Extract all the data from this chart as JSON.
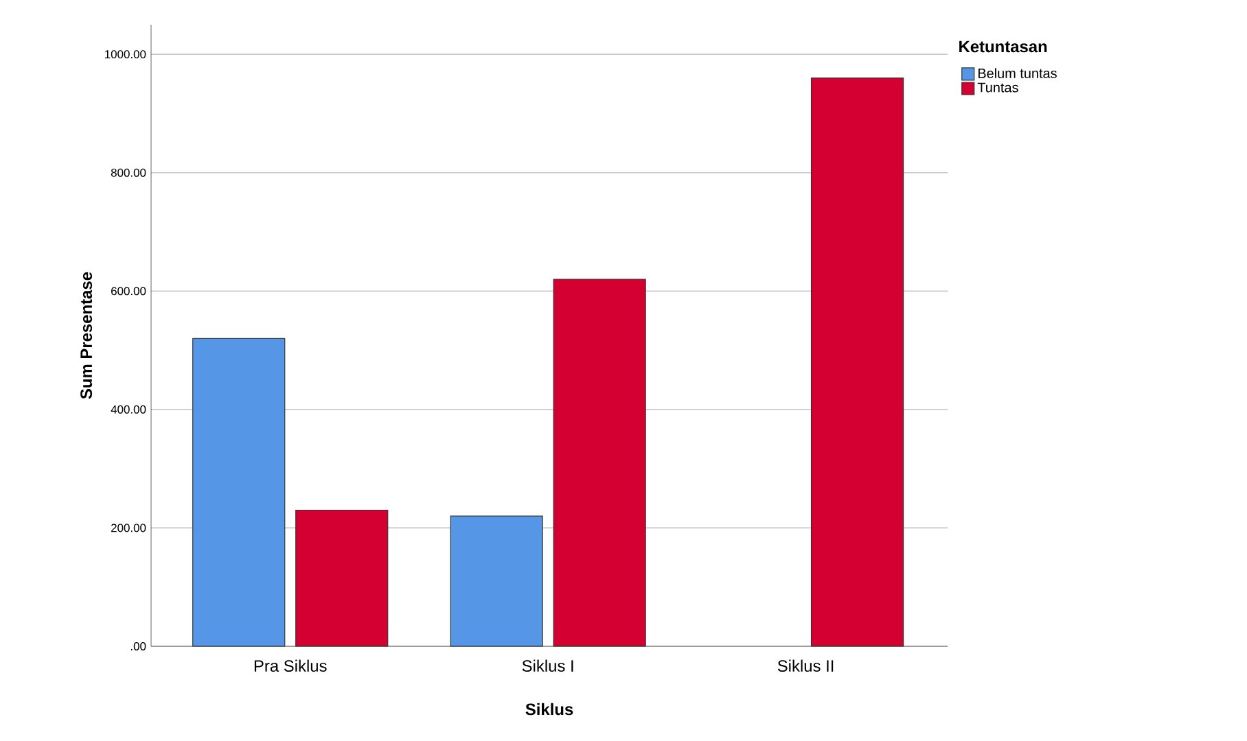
{
  "chart_data": {
    "type": "bar",
    "xlabel": "Siklus",
    "ylabel": "Sum Presentase",
    "legend_title": "Ketuntasan",
    "categories": [
      "Pra Siklus",
      "Siklus I",
      "Siklus II"
    ],
    "series": [
      {
        "name": "Belum tuntas",
        "color": "#5596e6",
        "values": [
          520,
          220,
          null
        ]
      },
      {
        "name": "Tuntas",
        "color": "#d50032",
        "values": [
          230,
          620,
          960
        ]
      }
    ],
    "ylim": [
      0,
      1050
    ],
    "yticks": [
      {
        "value": 0,
        "label": ".00"
      },
      {
        "value": 200,
        "label": "200.00"
      },
      {
        "value": 400,
        "label": "400.00"
      },
      {
        "value": 600,
        "label": "600.00"
      },
      {
        "value": 800,
        "label": "800.00"
      },
      {
        "value": 1000,
        "label": "1000.00"
      }
    ],
    "grid": "y",
    "legend": "top right"
  }
}
